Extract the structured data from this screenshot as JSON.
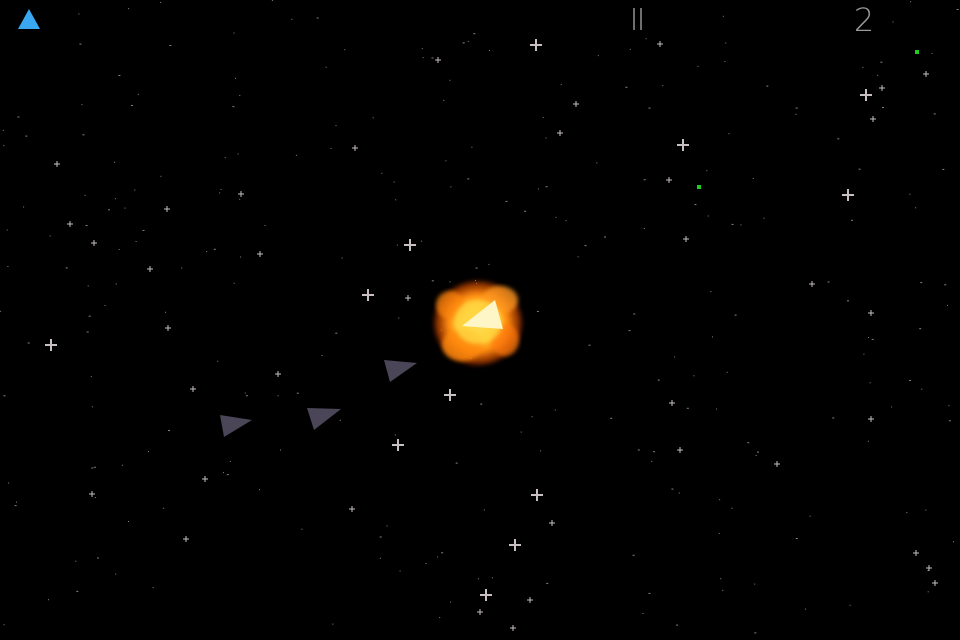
{
  "hud": {
    "lives_icon": "blue-triangle-ship-icon",
    "pause_icon": "pause-icon",
    "score": "2"
  },
  "colors": {
    "background": "#000000",
    "lives_icon": "#3aa8f0",
    "enemy_ship": "#4a4658",
    "player_ship": "#fff6c8",
    "explosion": "#ff9a10",
    "star": "#c8c0c0",
    "radar_blip": "#22cc22"
  }
}
